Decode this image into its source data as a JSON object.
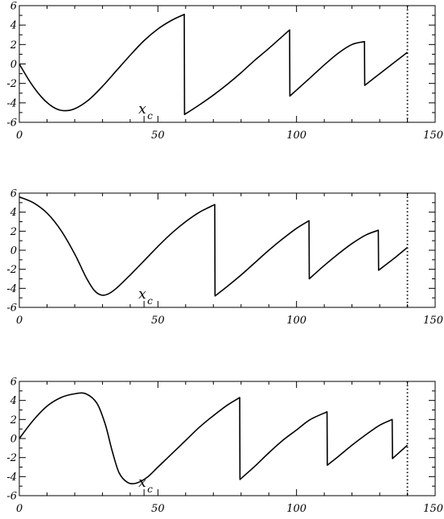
{
  "chart_data": [
    {
      "type": "line",
      "xlim": [
        0,
        150
      ],
      "ylim": [
        -6,
        6
      ],
      "xticks": [
        "0",
        "50",
        "100",
        "150"
      ],
      "yticks": [
        "-6",
        "-4",
        "-2",
        "0",
        "2",
        "4",
        "6"
      ],
      "annotation": {
        "text": "x",
        "sub": "c",
        "x": 45
      },
      "vline_x": 140,
      "grid": false,
      "series": [
        {
          "x": [
            0,
            4,
            8,
            12,
            15.8,
            20,
            25,
            30,
            35,
            40,
            45,
            50,
            55,
            59.5,
            59.6,
            65,
            70,
            75,
            80,
            85,
            90,
            97.5,
            97.6,
            105,
            110,
            115,
            120,
            124.5,
            124.6,
            130,
            135,
            140
          ],
          "y": [
            0,
            -1.9,
            -3.4,
            -4.4,
            -4.8,
            -4.6,
            -3.7,
            -2.3,
            -0.7,
            0.9,
            2.4,
            3.6,
            4.5,
            5.1,
            -5.2,
            -4.2,
            -3.2,
            -2.1,
            -0.9,
            0.4,
            1.6,
            3.5,
            -3.3,
            -1.4,
            -0.1,
            1.1,
            2.0,
            2.3,
            -2.2,
            -1.0,
            0.1,
            1.2
          ]
        }
      ]
    },
    {
      "type": "line",
      "xlim": [
        0,
        150
      ],
      "ylim": [
        -6,
        6
      ],
      "xticks": [
        "0",
        "50",
        "100",
        "150"
      ],
      "yticks": [
        "-6",
        "-4",
        "-2",
        "0",
        "2",
        "4",
        "6"
      ],
      "annotation": {
        "text": "x",
        "sub": "c",
        "x": 45
      },
      "vline_x": 140,
      "grid": false,
      "series": [
        {
          "x": [
            0,
            5,
            10,
            15,
            20,
            24,
            27,
            29.5,
            32,
            35,
            40,
            45,
            50,
            55,
            60,
            65,
            70.5,
            70.6,
            75,
            80,
            85,
            90,
            95,
            100,
            104.5,
            104.6,
            110,
            115,
            120,
            125,
            129.5,
            129.6,
            135,
            140
          ],
          "y": [
            5.6,
            5.0,
            3.9,
            2.1,
            -0.4,
            -2.8,
            -4.2,
            -4.7,
            -4.6,
            -4.0,
            -2.6,
            -1.1,
            0.4,
            1.8,
            3.0,
            4.0,
            4.8,
            -4.8,
            -3.8,
            -2.6,
            -1.3,
            0.0,
            1.2,
            2.3,
            3.1,
            -3.0,
            -1.6,
            -0.4,
            0.7,
            1.6,
            2.1,
            -2.1,
            -0.9,
            0.3
          ]
        }
      ]
    },
    {
      "type": "line",
      "xlim": [
        0,
        150
      ],
      "ylim": [
        -6,
        6
      ],
      "xticks": [
        "0",
        "50",
        "100",
        "150"
      ],
      "yticks": [
        "-6",
        "-4",
        "-2",
        "0",
        "2",
        "4",
        "6"
      ],
      "annotation": {
        "text": "x",
        "sub": "c",
        "x": 45
      },
      "vline_x": 140,
      "grid": false,
      "series": [
        {
          "x": [
            0,
            5,
            10,
            15,
            20,
            24,
            28,
            31,
            33.5,
            36,
            39,
            42,
            46,
            50,
            55,
            60,
            65,
            70,
            75,
            79.5,
            79.6,
            85,
            90,
            95,
            100,
            105,
            111,
            111.1,
            115,
            120,
            125,
            130,
            134.5,
            134.6,
            140
          ],
          "y": [
            0,
            1.9,
            3.4,
            4.3,
            4.7,
            4.7,
            3.7,
            1.5,
            -1.3,
            -3.6,
            -4.6,
            -4.7,
            -4.1,
            -3.0,
            -1.6,
            -0.2,
            1.2,
            2.4,
            3.5,
            4.3,
            -4.3,
            -2.9,
            -1.5,
            -0.2,
            0.9,
            2.0,
            2.8,
            -2.8,
            -1.9,
            -0.7,
            0.4,
            1.4,
            2.0,
            -2.1,
            -0.7
          ]
        }
      ]
    }
  ]
}
